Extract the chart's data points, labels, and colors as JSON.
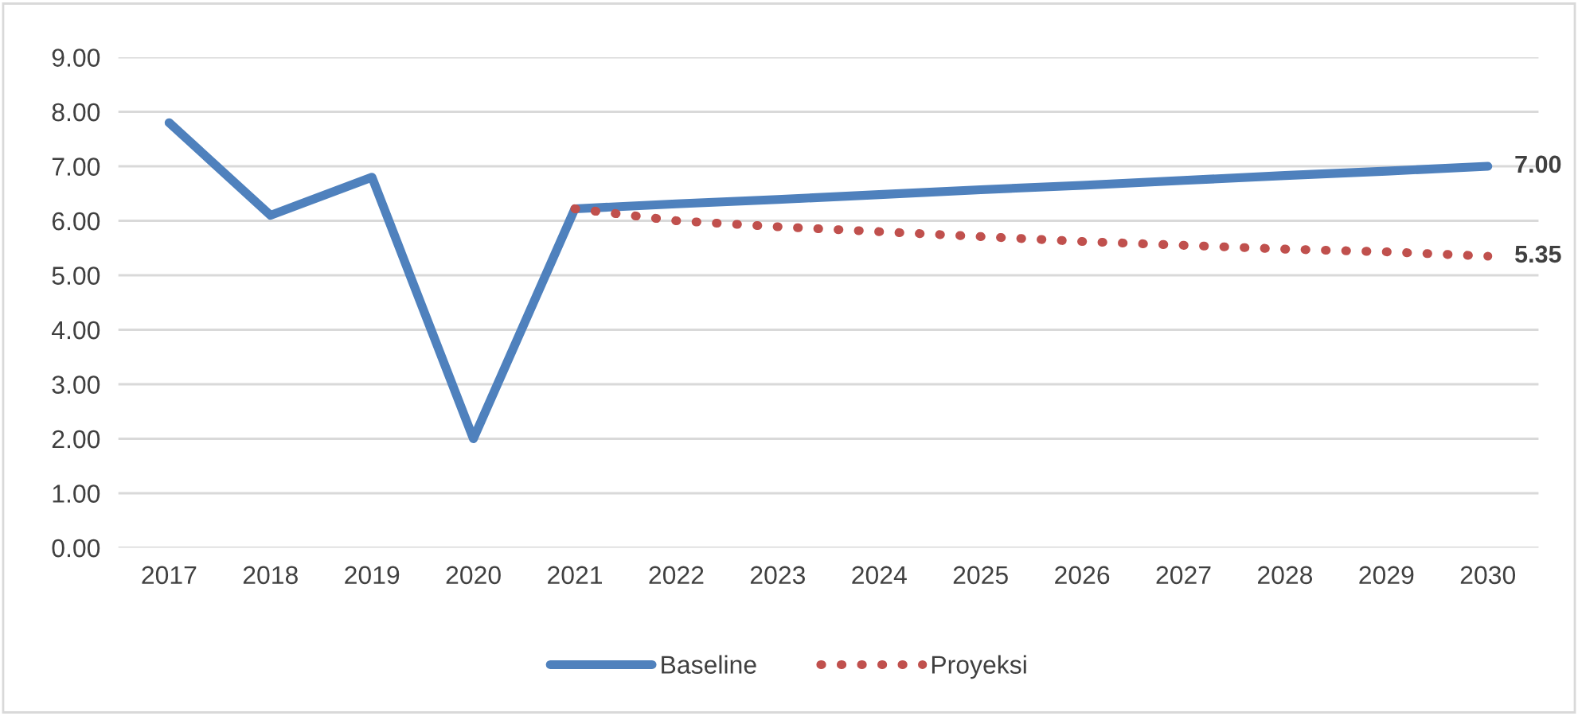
{
  "chart_data": {
    "type": "line",
    "categories": [
      "2017",
      "2018",
      "2019",
      "2020",
      "2021",
      "2022",
      "2023",
      "2024",
      "2025",
      "2026",
      "2027",
      "2028",
      "2029",
      "2030"
    ],
    "series": [
      {
        "name": "Baseline",
        "color": "#4f81bd",
        "line_style": "solid",
        "values": [
          7.8,
          6.1,
          6.8,
          2.0,
          6.22,
          6.31,
          6.39,
          6.48,
          6.57,
          6.65,
          6.74,
          6.83,
          6.91,
          7.0
        ],
        "value_labels": [
          null,
          null,
          null,
          null,
          null,
          null,
          null,
          null,
          null,
          null,
          null,
          null,
          null,
          "7.00"
        ]
      },
      {
        "name": "Proyeksi",
        "color": "#c0504d",
        "line_style": "dotted",
        "values": [
          null,
          null,
          null,
          null,
          6.22,
          6.0,
          5.89,
          5.8,
          5.71,
          5.62,
          5.55,
          5.48,
          5.43,
          5.35
        ],
        "value_labels": [
          null,
          null,
          null,
          null,
          null,
          null,
          null,
          null,
          null,
          null,
          null,
          null,
          null,
          "5.35"
        ]
      }
    ],
    "ylim": [
      0,
      9
    ],
    "yticks": [
      {
        "value": 0,
        "label": "0.00"
      },
      {
        "value": 1,
        "label": "1.00"
      },
      {
        "value": 2,
        "label": "2.00"
      },
      {
        "value": 3,
        "label": "3.00"
      },
      {
        "value": 4,
        "label": "4.00"
      },
      {
        "value": 5,
        "label": "5.00"
      },
      {
        "value": 6,
        "label": "6.00"
      },
      {
        "value": 7,
        "label": "7.00"
      },
      {
        "value": 8,
        "label": "8.00"
      },
      {
        "value": 9,
        "label": "9.00"
      }
    ],
    "grid": "y",
    "legend": "bottom",
    "marker": "none"
  }
}
